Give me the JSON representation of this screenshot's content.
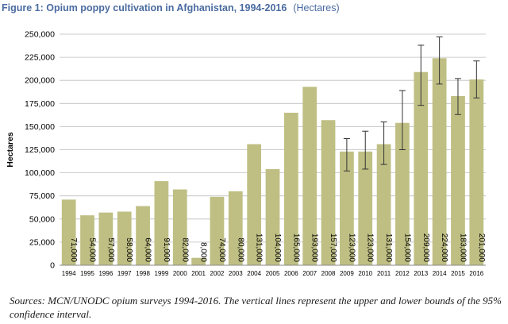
{
  "figure": {
    "title_main": "Figure 1: Opium poppy cultivation in Afghanistan, 1994-2016",
    "title_unit": "(Hectares)",
    "caption": "Sources: MCN/UNODC opium surveys 1994-2016. The vertical lines represent the upper and lower bounds of the 95% confidence interval."
  },
  "chart_data": {
    "type": "bar",
    "title": "Figure 1: Opium poppy cultivation in Afghanistan, 1994-2016 (Hectares)",
    "ylabel": "Hectares",
    "xlabel": "",
    "ylim": [
      0,
      250000
    ],
    "yticks": [
      0,
      25000,
      50000,
      75000,
      100000,
      125000,
      150000,
      175000,
      200000,
      225000,
      250000
    ],
    "ytick_labels": [
      "0",
      "25,000",
      "50,000",
      "75,000",
      "100,000",
      "125,000",
      "150,000",
      "175,000",
      "200,000",
      "225,000",
      "250,000"
    ],
    "grid": true,
    "bar_color": "#bfbf84",
    "categories": [
      "1994",
      "1995",
      "1996",
      "1997",
      "1998",
      "1999",
      "2000",
      "2001",
      "2002",
      "2003",
      "2004",
      "2005",
      "2006",
      "2007",
      "2008",
      "2009",
      "2010",
      "2011",
      "2012",
      "2013",
      "2014",
      "2015",
      "2016"
    ],
    "values": [
      71000,
      54000,
      57000,
      58000,
      64000,
      91000,
      82000,
      8000,
      74000,
      80000,
      131000,
      104000,
      165000,
      193000,
      157000,
      123000,
      123000,
      131000,
      154000,
      209000,
      224000,
      183000,
      201000
    ],
    "value_labels": [
      "71,000",
      "54,000",
      "57,000",
      "58,000",
      "64,000",
      "91,000",
      "82,000",
      "8,000",
      "74,000",
      "80,000",
      "131,000",
      "104,000",
      "165,000",
      "193,000",
      "157,000",
      "123,000",
      "123,000",
      "131,000",
      "154,000",
      "209,000",
      "224,000",
      "183,000",
      "201,000"
    ],
    "error_bars": [
      {
        "category": "2009",
        "lower": 102000,
        "upper": 137000
      },
      {
        "category": "2010",
        "lower": 104000,
        "upper": 145000
      },
      {
        "category": "2011",
        "lower": 109000,
        "upper": 155000
      },
      {
        "category": "2012",
        "lower": 125000,
        "upper": 189000
      },
      {
        "category": "2013",
        "lower": 173000,
        "upper": 238000
      },
      {
        "category": "2014",
        "lower": 196000,
        "upper": 247000
      },
      {
        "category": "2015",
        "lower": 163000,
        "upper": 202000
      },
      {
        "category": "2016",
        "lower": 181000,
        "upper": 221000
      }
    ]
  }
}
